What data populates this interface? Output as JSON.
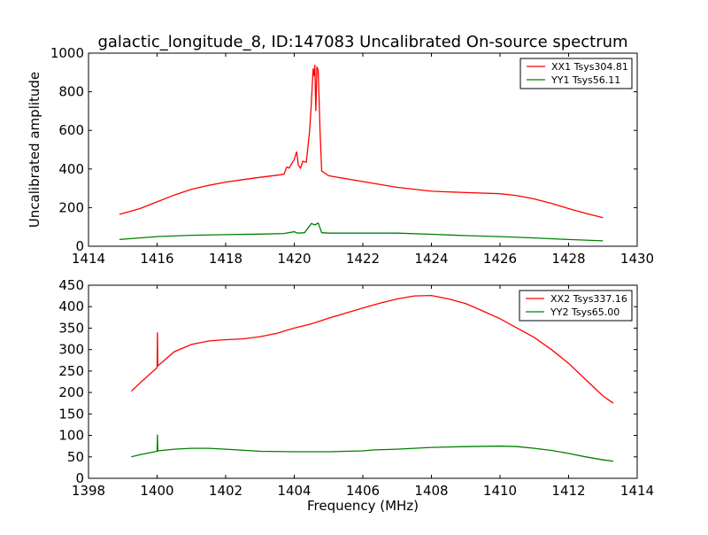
{
  "chart_data": [
    {
      "type": "line",
      "title": "galactic_longitude_8, ID:147083 Uncalibrated On-source spectrum",
      "xlabel": "",
      "ylabel": "Uncalibrated amplitude",
      "xlim": [
        1414,
        1430
      ],
      "ylim": [
        0,
        1000
      ],
      "xticks": [
        1414,
        1416,
        1418,
        1420,
        1422,
        1424,
        1426,
        1428,
        1430
      ],
      "yticks": [
        0,
        200,
        400,
        600,
        800,
        1000
      ],
      "legend_position": "top-right",
      "grid": false,
      "series": [
        {
          "name": "XX1 Tsys304.81",
          "color": "#ff0000",
          "x": [
            1414.9,
            1415.5,
            1416,
            1416.5,
            1417,
            1417.5,
            1418,
            1418.5,
            1419,
            1419.5,
            1419.7,
            1419.78,
            1419.85,
            1420,
            1420.07,
            1420.12,
            1420.18,
            1420.25,
            1420.35,
            1420.45,
            1420.5,
            1420.55,
            1420.58,
            1420.6,
            1420.63,
            1420.66,
            1420.7,
            1420.75,
            1420.8,
            1421,
            1422,
            1423,
            1424,
            1425,
            1426,
            1426.5,
            1427,
            1427.5,
            1428,
            1428.5,
            1429
          ],
          "y": [
            165,
            195,
            230,
            265,
            295,
            315,
            332,
            345,
            357,
            368,
            373,
            410,
            405,
            450,
            490,
            420,
            405,
            440,
            435,
            600,
            750,
            920,
            880,
            940,
            700,
            930,
            910,
            600,
            390,
            365,
            335,
            305,
            285,
            278,
            272,
            262,
            245,
            222,
            195,
            170,
            148
          ]
        },
        {
          "name": "YY1 Tsys56.11",
          "color": "#008000",
          "x": [
            1414.9,
            1416,
            1417,
            1418,
            1419,
            1419.7,
            1420,
            1420.1,
            1420.3,
            1420.5,
            1420.6,
            1420.7,
            1420.8,
            1421,
            1423,
            1424,
            1425,
            1426,
            1427,
            1428,
            1429
          ],
          "y": [
            35,
            50,
            57,
            60,
            63,
            66,
            75,
            68,
            70,
            118,
            110,
            120,
            70,
            68,
            68,
            62,
            55,
            50,
            43,
            35,
            28
          ]
        }
      ]
    },
    {
      "type": "line",
      "title": "",
      "xlabel": "Frequency (MHz)",
      "ylabel": "",
      "xlim": [
        1398,
        1414
      ],
      "ylim": [
        0,
        450
      ],
      "xticks": [
        1398,
        1400,
        1402,
        1404,
        1406,
        1408,
        1410,
        1412,
        1414
      ],
      "yticks": [
        0,
        50,
        100,
        150,
        200,
        250,
        300,
        350,
        400,
        450
      ],
      "legend_position": "top-right",
      "grid": false,
      "series": [
        {
          "name": "XX2 Tsys337.16",
          "color": "#ff0000",
          "x": [
            1399.25,
            1399.5,
            1400,
            1400.01,
            1400.02,
            1400.5,
            1401,
            1401.5,
            1402,
            1402.5,
            1403,
            1403.5,
            1404,
            1404.5,
            1405,
            1405.5,
            1406,
            1406.5,
            1407,
            1407.5,
            1408,
            1408.5,
            1409,
            1409.5,
            1410,
            1410.5,
            1411,
            1411.5,
            1412,
            1412.5,
            1413,
            1413.3
          ],
          "y": [
            203,
            222,
            258,
            340,
            262,
            295,
            312,
            320,
            323,
            325,
            330,
            338,
            350,
            360,
            373,
            385,
            397,
            408,
            418,
            425,
            426,
            418,
            407,
            390,
            372,
            350,
            328,
            300,
            268,
            230,
            192,
            175
          ]
        },
        {
          "name": "YY2 Tsys65.00",
          "color": "#008000",
          "x": [
            1399.25,
            1399.5,
            1400,
            1400.01,
            1400.02,
            1400.5,
            1401,
            1401.5,
            1402,
            1403,
            1404,
            1405,
            1406,
            1406.3,
            1407,
            1408,
            1409,
            1410,
            1410.5,
            1411,
            1411.5,
            1412,
            1412.5,
            1413,
            1413.3
          ],
          "y": [
            50,
            55,
            63,
            102,
            64,
            68,
            70,
            70,
            68,
            63,
            62,
            62,
            64,
            66,
            68,
            72,
            74,
            75,
            74,
            70,
            65,
            58,
            50,
            43,
            40
          ]
        }
      ]
    }
  ]
}
